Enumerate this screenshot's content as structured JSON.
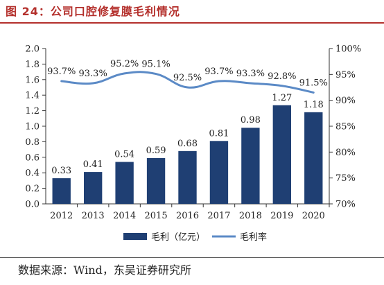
{
  "figure": {
    "title": "图 24：公司口腔修复膜毛利情况",
    "source": "数据来源：Wind，东吴证券研究所"
  },
  "colors": {
    "title_red": "#b4302c",
    "bar": "#1f3f73",
    "line": "#5b8ac6"
  },
  "chart_data": {
    "type": "bar",
    "categories": [
      "2012",
      "2013",
      "2014",
      "2015",
      "2016",
      "2017",
      "2018",
      "2019",
      "2020"
    ],
    "series": [
      {
        "name": "毛利（亿元）",
        "type": "bar",
        "axis": "left",
        "values": [
          0.33,
          0.41,
          0.54,
          0.59,
          0.68,
          0.81,
          0.98,
          1.27,
          1.18
        ],
        "labels": [
          "0.33",
          "0.41",
          "0.54",
          "0.59",
          "0.68",
          "0.81",
          "0.98",
          "1.27",
          "1.18"
        ]
      },
      {
        "name": "毛利率",
        "type": "line",
        "axis": "right",
        "values": [
          93.7,
          93.3,
          95.2,
          95.1,
          92.5,
          93.7,
          93.3,
          92.8,
          91.5
        ],
        "labels": [
          "93.7%",
          "93.3%",
          "95.2%",
          "95.1%",
          "92.5%",
          "93.7%",
          "93.3%",
          "92.8%",
          "91.5%"
        ]
      }
    ],
    "y_left": {
      "lim": [
        0,
        2.0
      ],
      "ticks": [
        "0.0",
        "0.2",
        "0.4",
        "0.6",
        "0.8",
        "1.0",
        "1.2",
        "1.4",
        "1.6",
        "1.8",
        "2.0"
      ]
    },
    "y_right": {
      "lim": [
        70,
        100
      ],
      "ticks": [
        "70%",
        "75%",
        "80%",
        "85%",
        "90%",
        "95%",
        "100%"
      ]
    },
    "legend_position": "bottom",
    "grid": false
  }
}
